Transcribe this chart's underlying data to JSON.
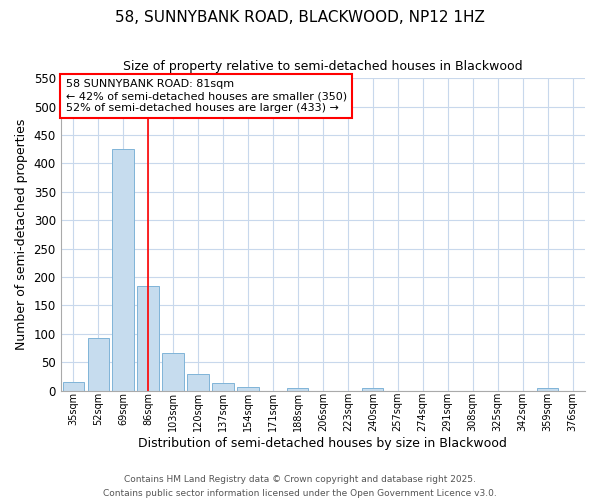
{
  "title1": "58, SUNNYBANK ROAD, BLACKWOOD, NP12 1HZ",
  "title2": "Size of property relative to semi-detached houses in Blackwood",
  "xlabel": "Distribution of semi-detached houses by size in Blackwood",
  "ylabel": "Number of semi-detached properties",
  "categories": [
    "35sqm",
    "52sqm",
    "69sqm",
    "86sqm",
    "103sqm",
    "120sqm",
    "137sqm",
    "154sqm",
    "171sqm",
    "188sqm",
    "206sqm",
    "223sqm",
    "240sqm",
    "257sqm",
    "274sqm",
    "291sqm",
    "308sqm",
    "325sqm",
    "342sqm",
    "359sqm",
    "376sqm"
  ],
  "values": [
    15,
    93,
    425,
    185,
    67,
    30,
    13,
    6,
    0,
    5,
    0,
    0,
    5,
    0,
    0,
    0,
    0,
    0,
    0,
    5,
    0
  ],
  "bar_color": "#c6dcee",
  "bar_edge_color": "#7fb4d8",
  "vline_bar_index": 3,
  "vline_color": "red",
  "annotation_text": "58 SUNNYBANK ROAD: 81sqm\n← 42% of semi-detached houses are smaller (350)\n52% of semi-detached houses are larger (433) →",
  "annotation_box_facecolor": "white",
  "annotation_box_edgecolor": "red",
  "ylim": [
    0,
    550
  ],
  "yticks": [
    0,
    50,
    100,
    150,
    200,
    250,
    300,
    350,
    400,
    450,
    500,
    550
  ],
  "footer1": "Contains HM Land Registry data © Crown copyright and database right 2025.",
  "footer2": "Contains public sector information licensed under the Open Government Licence v3.0.",
  "fig_facecolor": "white",
  "ax_facecolor": "white",
  "grid_color": "#c8d8ec",
  "title1_fontsize": 11,
  "title2_fontsize": 9,
  "xlabel_fontsize": 9,
  "ylabel_fontsize": 9,
  "xtick_fontsize": 7,
  "ytick_fontsize": 8.5,
  "footer_fontsize": 6.5,
  "ann_fontsize": 8
}
